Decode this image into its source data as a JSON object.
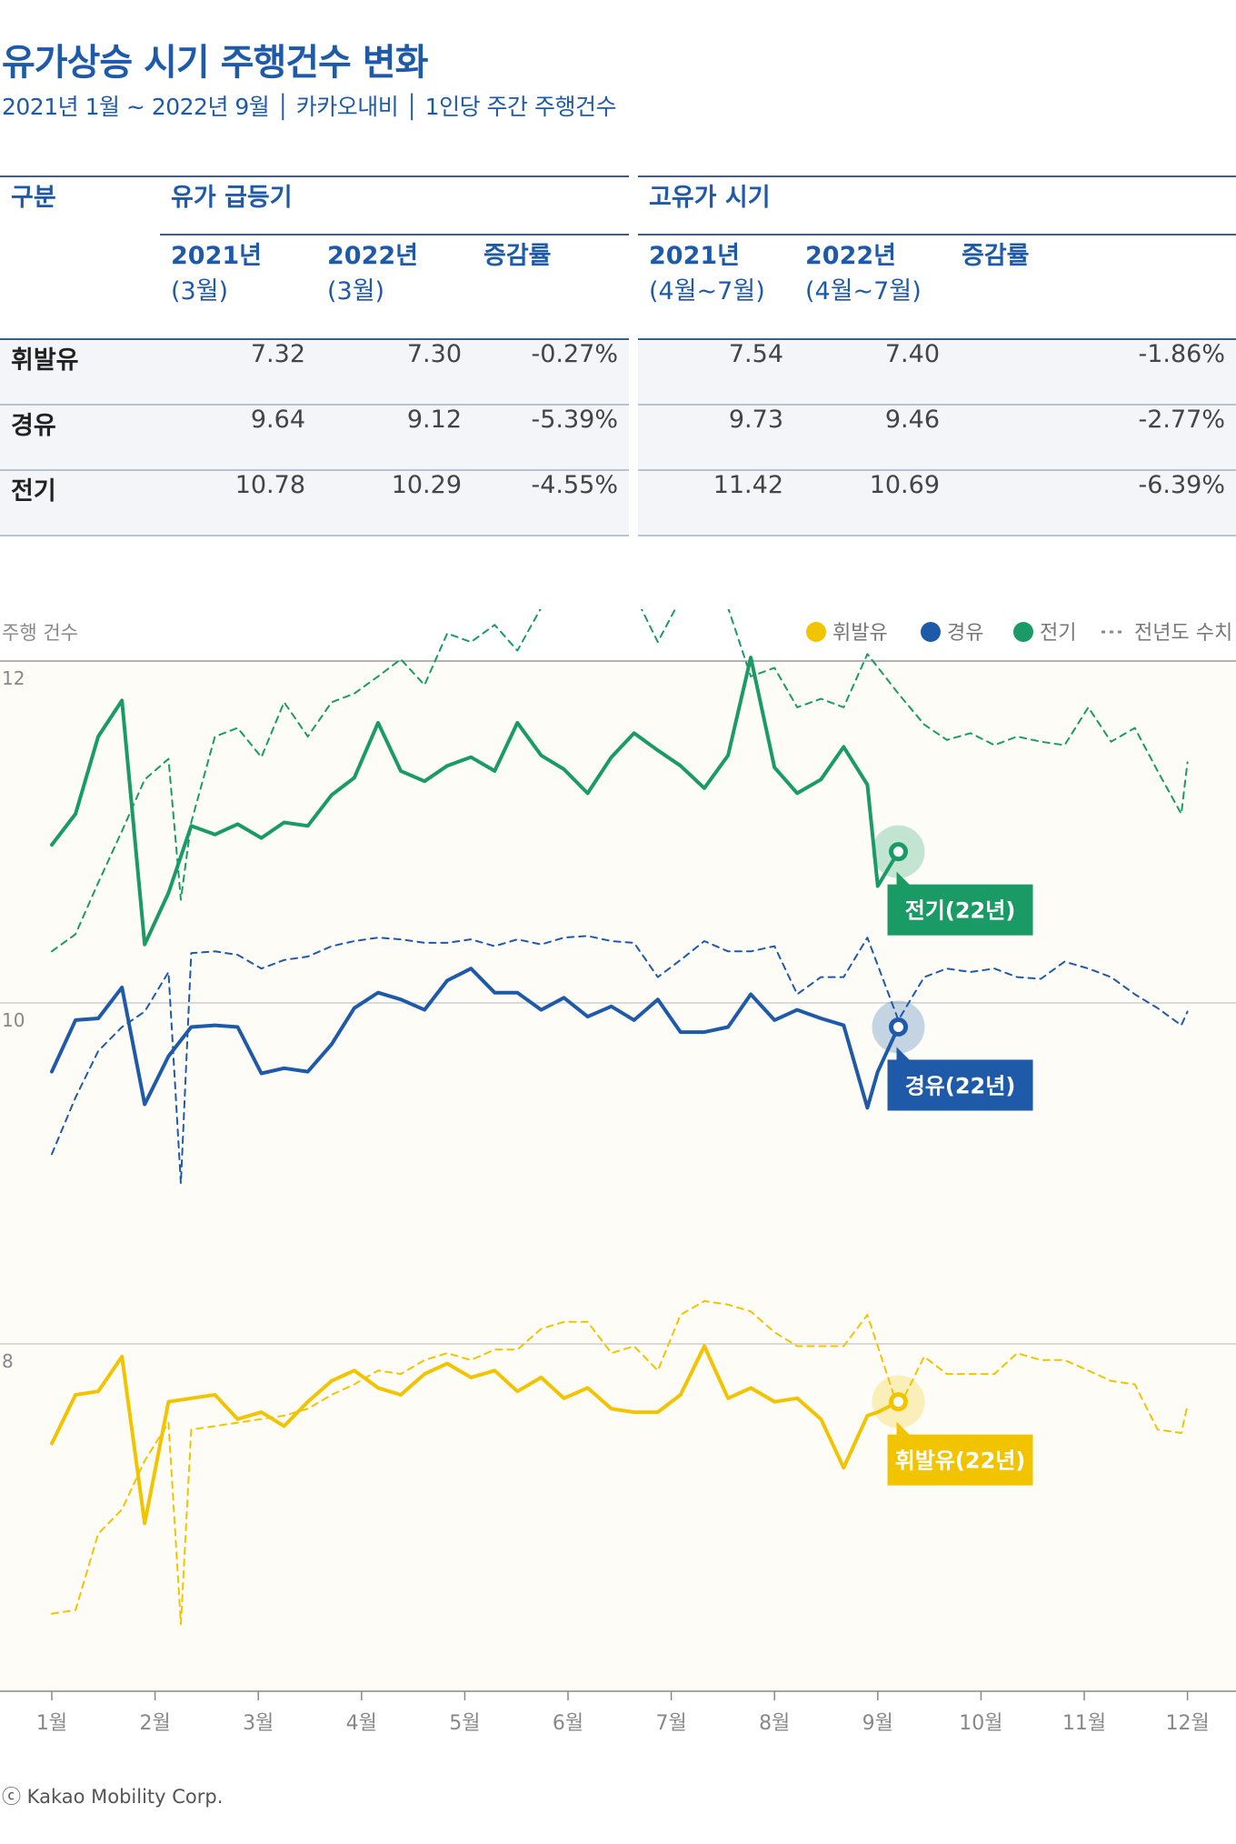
{
  "title": "유가상승 시기 주행건수 변화",
  "subtitle": "2021년 1월 ~ 2022년 9월 │ 카카오내비 │ 1인당 주간 주행건수",
  "table": {
    "col_category": "구분",
    "group1": "유가 급등기",
    "group2": "고유가 시기",
    "g1_col1": [
      "2021년",
      "(3월)"
    ],
    "g1_col2": [
      "2022년",
      "(3월)"
    ],
    "g1_col3": "증감률",
    "g2_col1": [
      "2021년",
      "(4월~7월)"
    ],
    "g2_col2": [
      "2022년",
      "(4월~7월)"
    ],
    "g2_col3": "증감률",
    "rows": [
      {
        "label": "휘발유",
        "values": [
          "7.32",
          "7.30",
          "-0.27%",
          "7.54",
          "7.40",
          "-1.86%"
        ]
      },
      {
        "label": "경유",
        "values": [
          "9.64",
          "9.12",
          "-5.39%",
          "9.73",
          "9.46",
          "-2.77%"
        ]
      },
      {
        "label": "전기",
        "values": [
          "10.78",
          "10.29",
          "-4.55%",
          "11.42",
          "10.69",
          "-6.39%"
        ]
      }
    ]
  },
  "footer": "ⓒ Kakao Mobility Corp.",
  "colors": {
    "gasoline": "#f2c400",
    "diesel": "#1e5aa8",
    "electric": "#1a9a64",
    "title": "#1e5aa8"
  },
  "chart_data": {
    "type": "line",
    "ylabel": "주행 건수",
    "yticks": [
      "12",
      "10",
      "8"
    ],
    "x_categories": [
      "1월",
      "2월",
      "3월",
      "4월",
      "5월",
      "6월",
      "7월",
      "8월",
      "9월",
      "10월",
      "11월",
      "12월"
    ],
    "legend": [
      "휘발유",
      "경유",
      "전기",
      "전년도 수치"
    ],
    "legend_position": "top-right",
    "note": "x values are month positions (1 = 1월, 12 = 12월); 전기 and 경유 share the upper panel, 휘발유 is drawn in the lower panel",
    "series": [
      {
        "name": "전기",
        "style": "solid",
        "color": "#1a9a64",
        "label": "전기(22년)",
        "x": [
          1.0,
          1.23,
          1.45,
          1.68,
          1.9,
          2.13,
          2.35,
          2.58,
          2.8,
          3.03,
          3.25,
          3.48,
          3.71,
          3.93,
          4.16,
          4.38,
          4.61,
          4.83,
          5.06,
          5.29,
          5.51,
          5.74,
          5.96,
          6.19,
          6.42,
          6.64,
          6.87,
          7.09,
          7.32,
          7.55,
          7.77,
          8.0,
          8.22,
          8.45,
          8.67,
          8.9,
          9.0,
          9.2
        ],
        "y": [
          10.92,
          11.1,
          11.55,
          11.76,
          10.34,
          10.64,
          11.03,
          10.98,
          11.04,
          10.96,
          11.05,
          11.03,
          11.21,
          11.31,
          11.63,
          11.35,
          11.29,
          11.38,
          11.43,
          11.35,
          11.63,
          11.44,
          11.36,
          11.22,
          11.43,
          11.57,
          11.47,
          11.38,
          11.25,
          11.44,
          12.01,
          11.37,
          11.22,
          11.3,
          11.49,
          11.27,
          10.68,
          10.88
        ]
      },
      {
        "name": "경유",
        "style": "solid",
        "color": "#1e5aa8",
        "label": "경유(22년)",
        "x": [
          1.0,
          1.23,
          1.45,
          1.68,
          1.9,
          2.13,
          2.35,
          2.58,
          2.8,
          3.03,
          3.25,
          3.48,
          3.71,
          3.93,
          4.16,
          4.38,
          4.61,
          4.83,
          5.06,
          5.29,
          5.51,
          5.74,
          5.96,
          6.19,
          6.42,
          6.64,
          6.87,
          7.09,
          7.32,
          7.55,
          7.77,
          8.0,
          8.22,
          8.45,
          8.67,
          8.9,
          9.0,
          9.2
        ],
        "y": [
          9.6,
          9.9,
          9.91,
          10.09,
          9.41,
          9.69,
          9.86,
          9.87,
          9.86,
          9.59,
          9.62,
          9.6,
          9.76,
          9.97,
          10.06,
          10.02,
          9.96,
          10.13,
          10.2,
          10.06,
          10.06,
          9.96,
          10.03,
          9.92,
          9.98,
          9.9,
          10.02,
          9.83,
          9.83,
          9.86,
          10.05,
          9.9,
          9.96,
          9.91,
          9.87,
          9.39,
          9.6,
          9.86
        ]
      },
      {
        "name": "휘발유",
        "style": "solid",
        "color": "#f2c400",
        "label": "휘발유(22년)",
        "x": [
          1.0,
          1.23,
          1.45,
          1.68,
          1.9,
          2.13,
          2.35,
          2.58,
          2.8,
          3.03,
          3.25,
          3.48,
          3.71,
          3.93,
          4.16,
          4.38,
          4.61,
          4.83,
          5.06,
          5.29,
          5.51,
          5.74,
          5.96,
          6.19,
          6.42,
          6.64,
          6.87,
          7.09,
          7.32,
          7.55,
          7.77,
          8.0,
          8.22,
          8.45,
          8.67,
          8.9,
          9.0,
          9.2
        ],
        "y": [
          7.36,
          7.5,
          7.51,
          7.61,
          7.13,
          7.48,
          7.49,
          7.5,
          7.43,
          7.45,
          7.41,
          7.48,
          7.54,
          7.57,
          7.52,
          7.5,
          7.56,
          7.59,
          7.55,
          7.57,
          7.51,
          7.55,
          7.49,
          7.52,
          7.46,
          7.45,
          7.45,
          7.5,
          7.64,
          7.49,
          7.52,
          7.48,
          7.49,
          7.43,
          7.29,
          7.44,
          7.45,
          7.48
        ]
      },
      {
        "name": "전기 전년도",
        "style": "dashed",
        "color": "#1a9a64",
        "x": [
          1.0,
          1.23,
          1.45,
          1.68,
          1.9,
          2.13,
          2.25,
          2.35,
          2.58,
          2.8,
          3.03,
          3.25,
          3.48,
          3.71,
          3.93,
          4.16,
          4.38,
          4.61,
          4.83,
          5.06,
          5.29,
          5.51,
          5.74,
          5.96,
          6.19,
          6.42,
          6.64,
          6.87,
          7.09,
          7.32,
          7.55,
          7.77,
          8.0,
          8.22,
          8.45,
          8.67,
          8.9,
          9.2,
          9.45,
          9.67,
          9.9,
          10.13,
          10.35,
          10.58,
          10.81,
          11.04,
          11.26,
          11.49,
          11.71,
          11.94,
          12.0
        ],
        "y": [
          10.3,
          10.4,
          10.7,
          11.0,
          11.3,
          11.42,
          10.6,
          11.05,
          11.55,
          11.6,
          11.43,
          11.75,
          11.55,
          11.75,
          11.8,
          11.9,
          12.0,
          11.85,
          12.15,
          12.1,
          12.2,
          12.05,
          12.3,
          12.38,
          12.3,
          12.45,
          12.38,
          12.1,
          12.35,
          12.5,
          12.3,
          11.9,
          11.95,
          11.72,
          11.77,
          11.72,
          12.03,
          11.8,
          11.62,
          11.53,
          11.57,
          11.5,
          11.55,
          11.52,
          11.5,
          11.72,
          11.52,
          11.6,
          11.35,
          11.1,
          11.4
        ]
      },
      {
        "name": "경유 전년도",
        "style": "dashed",
        "color": "#1e5aa8",
        "x": [
          1.0,
          1.23,
          1.45,
          1.68,
          1.9,
          2.13,
          2.25,
          2.35,
          2.58,
          2.8,
          3.03,
          3.25,
          3.48,
          3.71,
          3.93,
          4.16,
          4.38,
          4.61,
          4.83,
          5.06,
          5.29,
          5.51,
          5.74,
          5.96,
          6.19,
          6.42,
          6.64,
          6.87,
          7.09,
          7.32,
          7.55,
          7.77,
          8.0,
          8.22,
          8.45,
          8.67,
          8.9,
          9.2,
          9.45,
          9.67,
          9.9,
          10.13,
          10.35,
          10.58,
          10.81,
          11.04,
          11.26,
          11.49,
          11.71,
          11.94,
          12.0
        ],
        "y": [
          9.12,
          9.45,
          9.72,
          9.86,
          9.95,
          10.18,
          8.95,
          10.29,
          10.3,
          10.28,
          10.2,
          10.25,
          10.27,
          10.33,
          10.36,
          10.38,
          10.37,
          10.35,
          10.35,
          10.37,
          10.33,
          10.37,
          10.34,
          10.38,
          10.39,
          10.36,
          10.35,
          10.15,
          10.25,
          10.36,
          10.3,
          10.3,
          10.33,
          10.05,
          10.15,
          10.15,
          10.38,
          9.9,
          10.15,
          10.2,
          10.18,
          10.2,
          10.15,
          10.14,
          10.24,
          10.2,
          10.15,
          10.05,
          9.97,
          9.87,
          9.95
        ]
      },
      {
        "name": "휘발유 전년도",
        "style": "dashed",
        "color": "#f2c400",
        "x": [
          1.0,
          1.23,
          1.45,
          1.68,
          1.9,
          2.13,
          2.25,
          2.35,
          2.58,
          2.8,
          3.03,
          3.25,
          3.48,
          3.71,
          3.93,
          4.16,
          4.38,
          4.61,
          4.83,
          5.06,
          5.29,
          5.51,
          5.74,
          5.96,
          6.19,
          6.42,
          6.64,
          6.87,
          7.09,
          7.32,
          7.55,
          7.77,
          8.0,
          8.22,
          8.45,
          8.67,
          8.9,
          9.2,
          9.45,
          9.67,
          9.9,
          10.13,
          10.35,
          10.58,
          10.81,
          11.04,
          11.26,
          11.49,
          11.71,
          11.94,
          12.0
        ],
        "y": [
          6.87,
          6.88,
          7.1,
          7.17,
          7.31,
          7.42,
          6.84,
          7.4,
          7.41,
          7.42,
          7.43,
          7.44,
          7.46,
          7.5,
          7.53,
          7.57,
          7.56,
          7.6,
          7.62,
          7.6,
          7.63,
          7.63,
          7.69,
          7.71,
          7.71,
          7.62,
          7.64,
          7.57,
          7.73,
          7.77,
          7.76,
          7.74,
          7.68,
          7.64,
          7.64,
          7.64,
          7.73,
          7.46,
          7.61,
          7.56,
          7.56,
          7.56,
          7.62,
          7.6,
          7.6,
          7.57,
          7.54,
          7.53,
          7.4,
          7.39,
          7.47
        ]
      }
    ]
  }
}
